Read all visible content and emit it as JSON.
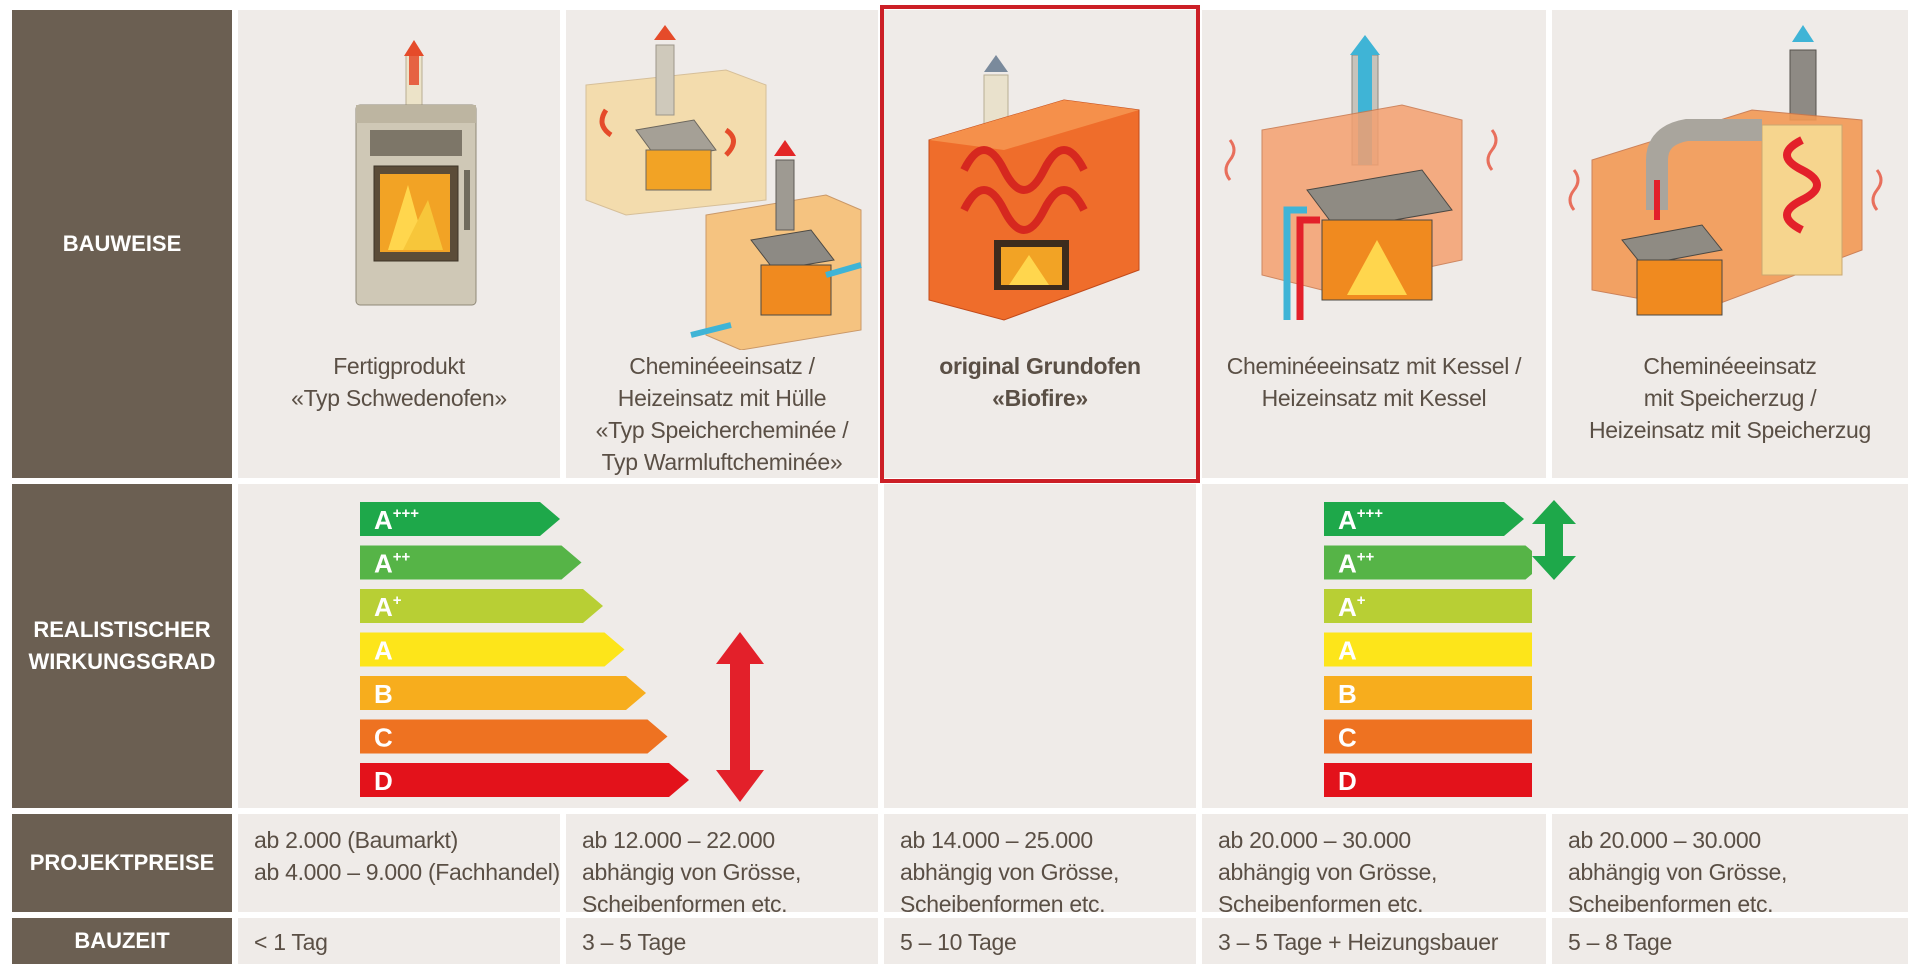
{
  "row_labels": {
    "bauweise": "BAUWEISE",
    "wirkungsgrad": [
      "REALISTISCHER",
      "WIRKUNGSGRAD"
    ],
    "projektpreise": "PROJEKTPREISE",
    "bauzeit": "BAUZEIT"
  },
  "columns": [
    {
      "caption": [
        "Fertigprodukt",
        "«Typ Schwedenofen»"
      ],
      "price": [
        "ab 2.000 (Baumarkt)",
        "ab 4.000 – 9.000 (Fachhandel)"
      ],
      "time": "< 1 Tag"
    },
    {
      "caption": [
        "Cheminéeeinsatz /",
        "Heizeinsatz mit Hülle",
        "«Typ Speichercheminée /",
        "Typ Warmluftcheminée»"
      ],
      "price": [
        "ab 12.000 – 22.000",
        "abhängig von Grösse,",
        "Scheibenformen etc."
      ],
      "time": "3 – 5 Tage"
    },
    {
      "caption": [
        "original Grundofen",
        "«Biofire»"
      ],
      "price": [
        "ab 14.000 – 25.000",
        "abhängig von Grösse,",
        "Scheibenformen etc."
      ],
      "time": "5 – 10 Tage"
    },
    {
      "caption": [
        "Cheminéeeinsatz mit Kessel /",
        "Heizeinsatz mit Kessel"
      ],
      "price": [
        "ab 20.000 – 30.000",
        "abhängig von Grösse,",
        "Scheibenformen etc."
      ],
      "time": "3 – 5 Tage + Heizungsbauer"
    },
    {
      "caption": [
        "Cheminéeeinsatz",
        "mit Speicherzug /",
        "Heizeinsatz mit Speicherzug"
      ],
      "price": [
        "ab 20.000 – 30.000",
        "abhängig von Grösse,",
        "Scheibenformen etc."
      ],
      "time": "5 – 8 Tage"
    }
  ],
  "energy_classes": [
    {
      "base": "A",
      "sup": "+++",
      "color": "#1ea84a"
    },
    {
      "base": "A",
      "sup": "++",
      "color": "#56b447"
    },
    {
      "base": "A",
      "sup": "+",
      "color": "#b8cf34"
    },
    {
      "base": "A",
      "sup": "",
      "color": "#fde51a"
    },
    {
      "base": "B",
      "sup": "",
      "color": "#f7ad1d"
    },
    {
      "base": "C",
      "sup": "",
      "color": "#ee7221"
    },
    {
      "base": "D",
      "sup": "",
      "color": "#e3121b"
    }
  ],
  "colors": {
    "header_bg": "#6b5f52",
    "cell_bg": "#efebe8",
    "highlight": "#cc1f26",
    "range_red": "#e3202a",
    "range_green": "#1ea84a"
  }
}
